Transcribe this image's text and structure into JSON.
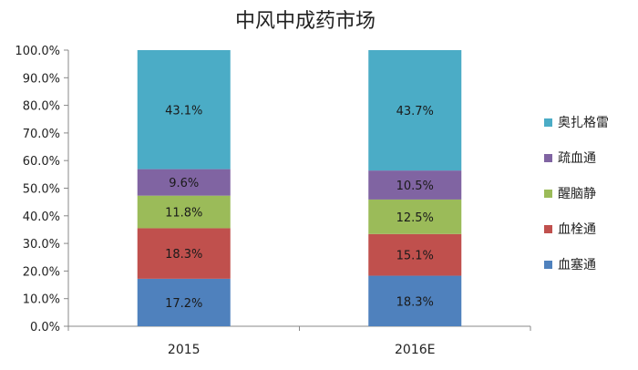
{
  "chart_data": {
    "type": "bar",
    "stacked": true,
    "title": "中风中成药市场",
    "categories": [
      "2015",
      "2016E"
    ],
    "ylim": [
      0,
      100
    ],
    "y_ticks": [
      "0.0%",
      "10.0%",
      "20.0%",
      "30.0%",
      "40.0%",
      "50.0%",
      "60.0%",
      "70.0%",
      "80.0%",
      "90.0%",
      "100.0%"
    ],
    "grid": false,
    "legend_position": "right",
    "series": [
      {
        "name": "血塞通",
        "color": "#4f81bd",
        "values": [
          17.2,
          18.3
        ],
        "labels": [
          "17.2%",
          "18.3%"
        ]
      },
      {
        "name": "血栓通",
        "color": "#c0504d",
        "values": [
          18.3,
          15.1
        ],
        "labels": [
          "18.3%",
          "15.1%"
        ]
      },
      {
        "name": "醒脑静",
        "color": "#9bbb59",
        "values": [
          11.8,
          12.5
        ],
        "labels": [
          "11.8%",
          "12.5%"
        ]
      },
      {
        "name": "疏血通",
        "color": "#8064a2",
        "values": [
          9.6,
          10.5
        ],
        "labels": [
          "9.6%",
          "10.5%"
        ]
      },
      {
        "name": "奥扎格雷",
        "color": "#4bacc6",
        "values": [
          43.1,
          43.7
        ],
        "labels": [
          "43.1%",
          "43.7%"
        ]
      }
    ]
  }
}
